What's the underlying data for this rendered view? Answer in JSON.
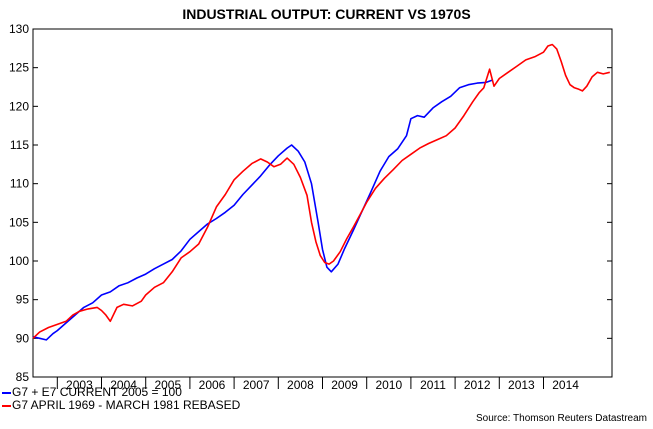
{
  "chart_data": {
    "type": "line",
    "title": "INDUSTRIAL OUTPUT: CURRENT VS 1970S",
    "ylim": [
      85,
      130
    ],
    "yticks": [
      85,
      90,
      95,
      100,
      105,
      110,
      115,
      120,
      125,
      130
    ],
    "x_categories": [
      "2003",
      "2004",
      "2005",
      "2006",
      "2007",
      "2008",
      "2009",
      "2010",
      "2011",
      "2012",
      "2013",
      "2014"
    ],
    "xlim_years": [
      2002.45,
      2014.98
    ],
    "series": [
      {
        "name": "G7 + E7 CURRENT 2005 = 100",
        "color": "#0000ff",
        "points": [
          [
            2002.45,
            90.2
          ],
          [
            2002.6,
            90.0
          ],
          [
            2002.75,
            89.8
          ],
          [
            2002.9,
            90.6
          ],
          [
            2003.0,
            91.0
          ],
          [
            2003.2,
            92.0
          ],
          [
            2003.4,
            93.0
          ],
          [
            2003.6,
            94.0
          ],
          [
            2003.8,
            94.6
          ],
          [
            2004.0,
            95.6
          ],
          [
            2004.2,
            96.0
          ],
          [
            2004.4,
            96.8
          ],
          [
            2004.6,
            97.2
          ],
          [
            2004.8,
            97.8
          ],
          [
            2005.0,
            98.3
          ],
          [
            2005.2,
            99.0
          ],
          [
            2005.4,
            99.6
          ],
          [
            2005.6,
            100.2
          ],
          [
            2005.8,
            101.3
          ],
          [
            2006.0,
            102.8
          ],
          [
            2006.2,
            103.8
          ],
          [
            2006.4,
            104.8
          ],
          [
            2006.6,
            105.5
          ],
          [
            2006.8,
            106.3
          ],
          [
            2007.0,
            107.2
          ],
          [
            2007.2,
            108.6
          ],
          [
            2007.4,
            109.8
          ],
          [
            2007.6,
            111.0
          ],
          [
            2007.8,
            112.4
          ],
          [
            2008.0,
            113.6
          ],
          [
            2008.2,
            114.6
          ],
          [
            2008.3,
            115.0
          ],
          [
            2008.45,
            114.2
          ],
          [
            2008.6,
            112.8
          ],
          [
            2008.75,
            110.0
          ],
          [
            2008.9,
            105.0
          ],
          [
            2009.0,
            101.5
          ],
          [
            2009.1,
            99.2
          ],
          [
            2009.2,
            98.6
          ],
          [
            2009.35,
            99.6
          ],
          [
            2009.5,
            101.6
          ],
          [
            2009.7,
            104.0
          ],
          [
            2009.9,
            106.5
          ],
          [
            2010.1,
            109.0
          ],
          [
            2010.3,
            111.6
          ],
          [
            2010.5,
            113.5
          ],
          [
            2010.7,
            114.5
          ],
          [
            2010.9,
            116.2
          ],
          [
            2011.0,
            118.4
          ],
          [
            2011.15,
            118.8
          ],
          [
            2011.3,
            118.6
          ],
          [
            2011.5,
            119.8
          ],
          [
            2011.7,
            120.6
          ],
          [
            2011.9,
            121.3
          ],
          [
            2012.1,
            122.4
          ],
          [
            2012.3,
            122.8
          ],
          [
            2012.5,
            123.0
          ],
          [
            2012.7,
            123.1
          ],
          [
            2012.85,
            123.4
          ]
        ]
      },
      {
        "name": "G7 APRIL 1969 - MARCH 1981 REBASED",
        "color": "#ff0000",
        "points": [
          [
            2002.45,
            90.0
          ],
          [
            2002.6,
            90.8
          ],
          [
            2002.8,
            91.4
          ],
          [
            2003.0,
            91.8
          ],
          [
            2003.2,
            92.2
          ],
          [
            2003.35,
            93.0
          ],
          [
            2003.5,
            93.5
          ],
          [
            2003.7,
            93.8
          ],
          [
            2003.9,
            94.0
          ],
          [
            2004.0,
            93.6
          ],
          [
            2004.1,
            93.0
          ],
          [
            2004.2,
            92.2
          ],
          [
            2004.35,
            94.0
          ],
          [
            2004.5,
            94.4
          ],
          [
            2004.7,
            94.2
          ],
          [
            2004.9,
            94.8
          ],
          [
            2005.0,
            95.6
          ],
          [
            2005.2,
            96.6
          ],
          [
            2005.4,
            97.2
          ],
          [
            2005.6,
            98.6
          ],
          [
            2005.8,
            100.4
          ],
          [
            2006.0,
            101.2
          ],
          [
            2006.2,
            102.2
          ],
          [
            2006.4,
            104.4
          ],
          [
            2006.6,
            107.0
          ],
          [
            2006.8,
            108.6
          ],
          [
            2007.0,
            110.5
          ],
          [
            2007.2,
            111.6
          ],
          [
            2007.4,
            112.6
          ],
          [
            2007.6,
            113.2
          ],
          [
            2007.75,
            112.8
          ],
          [
            2007.9,
            112.2
          ],
          [
            2008.05,
            112.5
          ],
          [
            2008.2,
            113.3
          ],
          [
            2008.35,
            112.5
          ],
          [
            2008.5,
            110.8
          ],
          [
            2008.65,
            108.5
          ],
          [
            2008.75,
            105.0
          ],
          [
            2008.85,
            102.5
          ],
          [
            2008.95,
            100.7
          ],
          [
            2009.05,
            99.8
          ],
          [
            2009.15,
            99.6
          ],
          [
            2009.25,
            100.0
          ],
          [
            2009.4,
            101.2
          ],
          [
            2009.55,
            102.9
          ],
          [
            2009.7,
            104.4
          ],
          [
            2009.85,
            106.0
          ],
          [
            2010.0,
            107.6
          ],
          [
            2010.2,
            109.4
          ],
          [
            2010.4,
            110.7
          ],
          [
            2010.6,
            111.8
          ],
          [
            2010.8,
            113.0
          ],
          [
            2011.0,
            113.8
          ],
          [
            2011.2,
            114.6
          ],
          [
            2011.4,
            115.2
          ],
          [
            2011.6,
            115.7
          ],
          [
            2011.8,
            116.2
          ],
          [
            2012.0,
            117.2
          ],
          [
            2012.2,
            118.8
          ],
          [
            2012.4,
            120.6
          ],
          [
            2012.55,
            121.8
          ],
          [
            2012.65,
            122.4
          ],
          [
            2012.78,
            124.8
          ],
          [
            2012.88,
            122.6
          ],
          [
            2013.0,
            123.6
          ],
          [
            2013.2,
            124.4
          ],
          [
            2013.4,
            125.2
          ],
          [
            2013.6,
            126.0
          ],
          [
            2013.8,
            126.4
          ],
          [
            2014.0,
            127.0
          ],
          [
            2014.1,
            127.8
          ],
          [
            2014.2,
            128.0
          ],
          [
            2014.3,
            127.4
          ],
          [
            2014.4,
            125.8
          ],
          [
            2014.5,
            124.0
          ],
          [
            2014.6,
            122.8
          ],
          [
            2014.7,
            122.4
          ],
          [
            2014.8,
            122.2
          ],
          [
            2014.88,
            122.0
          ],
          [
            2014.98,
            122.6
          ],
          [
            2015.1,
            123.8
          ],
          [
            2015.22,
            124.4
          ],
          [
            2015.35,
            124.2
          ],
          [
            2015.5,
            124.4
          ]
        ]
      }
    ],
    "legend_placement": "bottom-left",
    "source": "Source: Thomson Reuters Datastream"
  }
}
